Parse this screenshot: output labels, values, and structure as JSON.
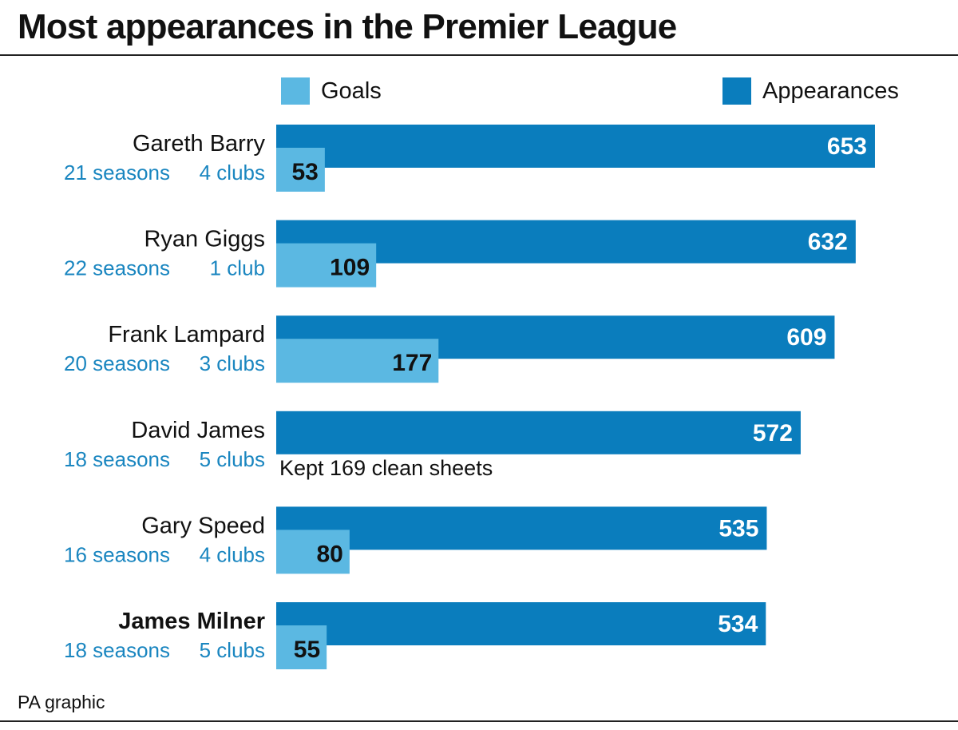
{
  "header": {
    "title": "Most appearances in the Premier League"
  },
  "legend": {
    "goals_label": "Goals",
    "appearances_label": "Appearances"
  },
  "colors": {
    "appearances": "#0a7dbd",
    "goals": "#5bb8e2",
    "meta_text": "#1a86c0"
  },
  "chart_data": {
    "type": "bar",
    "orientation": "horizontal",
    "title": "Most appearances in the Premier League",
    "legend_placement": "top",
    "grid": false,
    "categories": [
      "Gareth Barry",
      "Ryan Giggs",
      "Frank Lampard",
      "David James",
      "Gary Speed",
      "James Milner"
    ],
    "series": [
      {
        "name": "Appearances",
        "values": [
          653,
          632,
          609,
          572,
          535,
          534
        ]
      },
      {
        "name": "Goals",
        "values": [
          53,
          109,
          177,
          null,
          80,
          55
        ]
      }
    ],
    "rows": [
      {
        "player": "Gareth Barry",
        "seasons": "21 seasons",
        "clubs": "4 clubs",
        "appearances": 653,
        "goals": 53,
        "highlight": false
      },
      {
        "player": "Ryan Giggs",
        "seasons": "22 seasons",
        "clubs": "1 club",
        "appearances": 632,
        "goals": 109,
        "highlight": false
      },
      {
        "player": "Frank Lampard",
        "seasons": "20 seasons",
        "clubs": "3 clubs",
        "appearances": 609,
        "goals": 177,
        "highlight": false
      },
      {
        "player": "David James",
        "seasons": "18 seasons",
        "clubs": "5 clubs",
        "appearances": 572,
        "goals": null,
        "note": "Kept 169 clean sheets",
        "highlight": false
      },
      {
        "player": "Gary Speed",
        "seasons": "16 seasons",
        "clubs": "4 clubs",
        "appearances": 535,
        "goals": 80,
        "highlight": false
      },
      {
        "player": "James Milner",
        "seasons": "18 seasons",
        "clubs": "5 clubs",
        "appearances": 534,
        "goals": 55,
        "highlight": true
      }
    ]
  },
  "footer": {
    "credit": "PA graphic"
  }
}
